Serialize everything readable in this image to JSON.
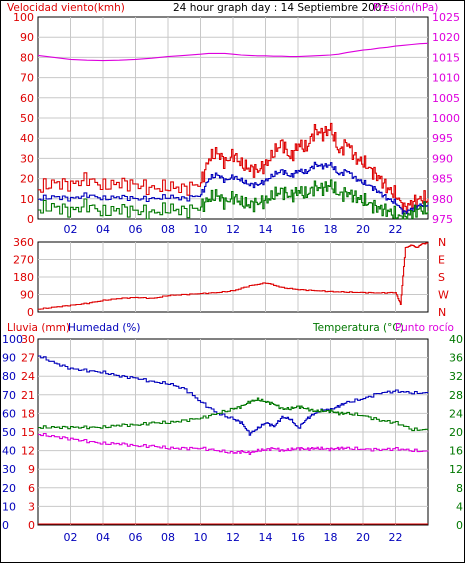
{
  "header": {
    "left_title": "Velocidad viento(kmh)",
    "center_title": "24 hour graph day : 14 Septiembre 2007",
    "right_title": "Presión(hPa)"
  },
  "colors": {
    "red": "#dd0000",
    "blue": "#0000bb",
    "green": "#007700",
    "magenta": "#dd00dd",
    "grid": "#c8c8c8"
  },
  "x_ticks": [
    "02",
    "04",
    "06",
    "08",
    "10",
    "12",
    "14",
    "16",
    "18",
    "20",
    "22"
  ],
  "chart_data": [
    {
      "type": "line",
      "name": "wind_pressure",
      "title": "24 hour graph day : 14 Septiembre 2007",
      "ylabel": "Velocidad viento(kmh)",
      "y2label": "Presión(hPa)",
      "ylim": [
        0,
        100
      ],
      "y2lim": [
        975,
        1025
      ],
      "yticks": [
        "0",
        "10",
        "20",
        "30",
        "40",
        "50",
        "60",
        "70",
        "80",
        "90",
        "100"
      ],
      "y2ticks": [
        "975",
        "980",
        "985",
        "990",
        "995",
        "1000",
        "1005",
        "1010",
        "1015",
        "1020",
        "1025"
      ],
      "x_hours": [
        0,
        1,
        2,
        3,
        4,
        5,
        6,
        7,
        8,
        9,
        10,
        10.5,
        11,
        11.5,
        12,
        12.5,
        13,
        13.5,
        14,
        14.5,
        15,
        15.5,
        16,
        16.5,
        17,
        17.5,
        18,
        18.5,
        19,
        19.5,
        20,
        20.5,
        21,
        21.5,
        22,
        22.5,
        23,
        23.5,
        24
      ],
      "series": [
        {
          "name": "gust",
          "color": "red",
          "axis": "left",
          "values": [
            15,
            18,
            17,
            20,
            16,
            18,
            17,
            15,
            16,
            15,
            18,
            30,
            33,
            28,
            32,
            27,
            25,
            24,
            27,
            33,
            38,
            30,
            37,
            35,
            44,
            42,
            45,
            33,
            38,
            30,
            28,
            24,
            20,
            15,
            12,
            5,
            8,
            10,
            10
          ]
        },
        {
          "name": "average",
          "color": "blue",
          "axis": "left",
          "values": [
            10,
            11,
            10,
            12,
            10,
            11,
            10,
            10,
            11,
            10,
            12,
            20,
            22,
            19,
            21,
            19,
            17,
            17,
            19,
            22,
            24,
            21,
            24,
            23,
            27,
            26,
            27,
            22,
            24,
            20,
            18,
            16,
            13,
            10,
            8,
            3,
            5,
            7,
            7
          ]
        },
        {
          "name": "wind_low",
          "color": "green",
          "axis": "left",
          "values": [
            5,
            6,
            4,
            7,
            3,
            5,
            4,
            3,
            5,
            4,
            6,
            10,
            12,
            8,
            11,
            8,
            7,
            8,
            9,
            12,
            14,
            11,
            14,
            12,
            16,
            15,
            17,
            12,
            13,
            11,
            9,
            7,
            5,
            4,
            2,
            0,
            3,
            5,
            4
          ]
        },
        {
          "name": "pressure",
          "color": "magenta",
          "axis": "right",
          "values": [
            1015.5,
            1015,
            1014.5,
            1014.3,
            1014.2,
            1014.3,
            1014.5,
            1014.8,
            1015.2,
            1015.5,
            1015.8,
            1016,
            1016,
            1016,
            1015.8,
            1015.6,
            1015.5,
            1015.4,
            1015.4,
            1015.3,
            1015.3,
            1015.2,
            1015.2,
            1015.3,
            1015.4,
            1015.5,
            1015.6,
            1015.8,
            1016.2,
            1016.5,
            1016.8,
            1017,
            1017.3,
            1017.5,
            1017.8,
            1018,
            1018.2,
            1018.4,
            1018.5
          ]
        }
      ]
    },
    {
      "type": "line",
      "name": "wind_direction",
      "ylim": [
        0,
        360
      ],
      "yticks": [
        "0",
        "90",
        "180",
        "270",
        "360"
      ],
      "y2ticks": [
        "N",
        "W",
        "S",
        "E",
        "N"
      ],
      "x_hours": [
        0,
        1,
        2,
        3,
        4,
        5,
        6,
        7,
        8,
        9,
        10,
        11,
        12,
        13,
        14,
        15,
        16,
        17,
        18,
        19,
        20,
        21,
        22,
        22.3,
        22.6,
        23,
        23.3,
        23.6,
        24
      ],
      "series": [
        {
          "name": "direction",
          "color": "red",
          "axis": "left",
          "values": [
            15,
            25,
            35,
            45,
            60,
            70,
            75,
            70,
            85,
            90,
            95,
            100,
            110,
            135,
            150,
            125,
            115,
            110,
            105,
            102,
            100,
            98,
            100,
            40,
            330,
            345,
            330,
            350,
            355
          ]
        }
      ]
    },
    {
      "type": "line",
      "name": "rain_humidity_temperature",
      "ylabel_left": "Lluvia (mm)",
      "ylabel_left2": "Humedad (%)",
      "ylabel_right": "Temperatura (°C)",
      "ylabel_right2": "Punto rocío",
      "rain_ticks": [
        "0",
        "3",
        "6",
        "9",
        "12",
        "15",
        "18",
        "21",
        "24",
        "27",
        "30"
      ],
      "humidity_ticks": [
        "0",
        "10",
        "20",
        "30",
        "40",
        "50",
        "60",
        "70",
        "80",
        "90",
        "100"
      ],
      "temp_ticks": [
        "0",
        "4",
        "8",
        "12",
        "16",
        "20",
        "24",
        "28",
        "32",
        "36",
        "40"
      ],
      "x_hours": [
        0,
        1,
        2,
        3,
        4,
        5,
        6,
        7,
        8,
        9,
        10,
        11,
        12,
        12.5,
        13,
        13.5,
        14,
        14.5,
        15,
        15.5,
        16,
        16.5,
        17,
        17.5,
        18,
        18.5,
        19,
        20,
        21,
        22,
        23,
        24
      ],
      "series": [
        {
          "name": "humidity",
          "color": "blue",
          "axis": "humidity",
          "values": [
            91,
            87,
            84,
            83,
            82,
            80,
            79,
            77,
            76,
            73,
            66,
            60,
            57,
            55,
            49,
            52,
            55,
            53,
            58,
            57,
            52,
            57,
            60,
            62,
            62,
            64,
            66,
            68,
            71,
            72,
            71,
            71
          ]
        },
        {
          "name": "temperature",
          "color": "green",
          "axis": "temp",
          "values": [
            21,
            21,
            21,
            21,
            21,
            21.5,
            21.5,
            22,
            22,
            22.5,
            23,
            24,
            25,
            25.5,
            26.5,
            27,
            26.5,
            26,
            25,
            25,
            25.5,
            25,
            24.5,
            24.5,
            24.5,
            24,
            24,
            23.5,
            22.5,
            22,
            20.5,
            20.5
          ]
        },
        {
          "name": "dewpoint",
          "color": "magenta",
          "axis": "temp",
          "values": [
            19.5,
            19,
            18.5,
            18,
            17.5,
            17.5,
            17,
            17,
            16.5,
            16.5,
            16.5,
            16,
            15.5,
            15.8,
            15.5,
            16,
            16.2,
            16.5,
            16,
            16.2,
            16.5,
            16.3,
            16.5,
            16.4,
            16.3,
            16.5,
            16.5,
            16.3,
            16.2,
            16.4,
            16,
            15.8
          ]
        },
        {
          "name": "rain",
          "color": "red",
          "axis": "rain",
          "values": [
            0,
            0,
            0,
            0,
            0,
            0,
            0,
            0,
            0,
            0,
            0,
            0,
            0,
            0,
            0,
            0,
            0,
            0,
            0,
            0,
            0,
            0,
            0,
            0,
            0,
            0,
            0,
            0,
            0,
            0,
            0,
            0
          ]
        }
      ]
    }
  ]
}
